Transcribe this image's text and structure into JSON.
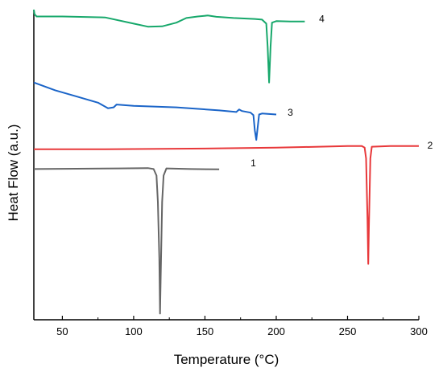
{
  "chart_data": {
    "type": "line",
    "title": "",
    "xlabel": "Temperature (°C)",
    "ylabel": "Heat Flow (a.u.)",
    "xlim": [
      30,
      300
    ],
    "x_ticks": [
      50,
      100,
      150,
      200,
      250,
      300
    ],
    "y_ticks_labeled": false,
    "grid": false,
    "legend": "none",
    "series": [
      {
        "name": "1",
        "color": "#666666",
        "points": [
          [
            30,
            48.6
          ],
          [
            60,
            48.7
          ],
          [
            90,
            48.8
          ],
          [
            110,
            48.9
          ],
          [
            114,
            48.6
          ],
          [
            116,
            46.5
          ],
          [
            117,
            38
          ],
          [
            118,
            20
          ],
          [
            118.5,
            2
          ],
          [
            119,
            15
          ],
          [
            120,
            38
          ],
          [
            121,
            46.5
          ],
          [
            123,
            48.8
          ],
          [
            140,
            48.6
          ],
          [
            160,
            48.5
          ]
        ]
      },
      {
        "name": "2",
        "color": "#e8383a",
        "points": [
          [
            30,
            55
          ],
          [
            80,
            55
          ],
          [
            150,
            55.2
          ],
          [
            200,
            55.5
          ],
          [
            250,
            56
          ],
          [
            260,
            56
          ],
          [
            262,
            55.5
          ],
          [
            263,
            52
          ],
          [
            264,
            32
          ],
          [
            264.5,
            18
          ],
          [
            265,
            30
          ],
          [
            266,
            52
          ],
          [
            267,
            55.8
          ],
          [
            280,
            56
          ],
          [
            300,
            56
          ]
        ]
      },
      {
        "name": "3",
        "color": "#1a64c8",
        "points": [
          [
            30,
            76.5
          ],
          [
            45,
            74
          ],
          [
            60,
            72
          ],
          [
            75,
            70
          ],
          [
            82,
            68.2
          ],
          [
            86,
            68.5
          ],
          [
            88,
            69.4
          ],
          [
            100,
            69
          ],
          [
            130,
            68.5
          ],
          [
            160,
            67.5
          ],
          [
            172,
            67
          ],
          [
            174,
            67.8
          ],
          [
            176,
            67.3
          ],
          [
            182,
            66.8
          ],
          [
            184,
            66
          ],
          [
            185,
            61
          ],
          [
            186,
            58
          ],
          [
            187,
            62
          ],
          [
            188,
            66.2
          ],
          [
            190,
            66.5
          ],
          [
            200,
            66.2
          ]
        ]
      },
      {
        "name": "4",
        "color": "#17a86b",
        "points": [
          [
            30,
            100
          ],
          [
            30.5,
            98.5
          ],
          [
            32,
            97.8
          ],
          [
            50,
            97.8
          ],
          [
            80,
            97.5
          ],
          [
            100,
            95.5
          ],
          [
            110,
            94.5
          ],
          [
            120,
            94.6
          ],
          [
            130,
            95.8
          ],
          [
            137,
            97.3
          ],
          [
            145,
            97.8
          ],
          [
            152,
            98.1
          ],
          [
            158,
            97.7
          ],
          [
            170,
            97.3
          ],
          [
            185,
            97
          ],
          [
            190,
            96.8
          ],
          [
            193,
            95.5
          ],
          [
            194,
            88
          ],
          [
            195,
            76.5
          ],
          [
            196,
            88
          ],
          [
            197,
            95.8
          ],
          [
            200,
            96.3
          ],
          [
            210,
            96.2
          ],
          [
            220,
            96.2
          ]
        ]
      }
    ],
    "curve_labels": [
      {
        "text": "1",
        "x": 182,
        "y": 49.5
      },
      {
        "text": "2",
        "x": 306,
        "y": 55.2
      },
      {
        "text": "3",
        "x": 208,
        "y": 65.8
      },
      {
        "text": "4",
        "x": 230,
        "y": 96
      }
    ]
  }
}
